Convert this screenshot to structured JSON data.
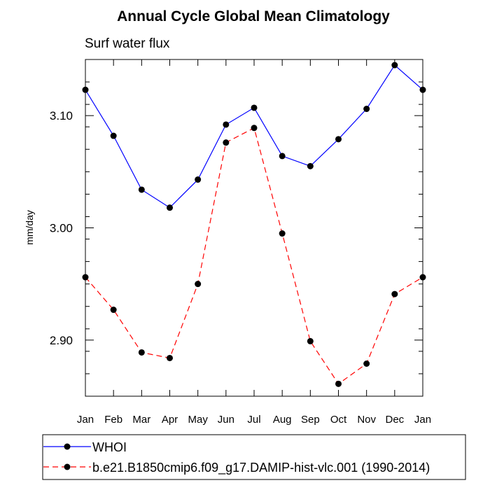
{
  "chart_data": {
    "type": "line",
    "title": "Annual Cycle Global Mean Climatology",
    "subtitle": "Surf water flux",
    "ylabel": "mm/day",
    "xlabel": "",
    "categories": [
      "Jan",
      "Feb",
      "Mar",
      "Apr",
      "May",
      "Jun",
      "Jul",
      "Aug",
      "Sep",
      "Oct",
      "Nov",
      "Dec",
      "Jan"
    ],
    "ylim": [
      2.85,
      3.15
    ],
    "yticks": [
      2.9,
      3.0,
      3.1
    ],
    "ytick_labels": [
      "2.90",
      "3.00",
      "3.10"
    ],
    "grid": false,
    "legend_position": "bottom",
    "series": [
      {
        "name": "WHOI",
        "color": "#0000ff",
        "dash": "solid",
        "values": [
          3.123,
          3.082,
          3.034,
          3.018,
          3.043,
          3.092,
          3.107,
          3.064,
          3.055,
          3.079,
          3.106,
          3.145,
          3.123
        ]
      },
      {
        "name": "b.e21.B1850cmip6.f09_g17.DAMIP-hist-vlc.001 (1990-2014)",
        "color": "#ff0000",
        "dash": "dashed",
        "values": [
          2.956,
          2.927,
          2.889,
          2.884,
          2.95,
          3.076,
          3.089,
          2.995,
          2.899,
          2.861,
          2.879,
          2.941,
          2.956
        ]
      }
    ]
  }
}
